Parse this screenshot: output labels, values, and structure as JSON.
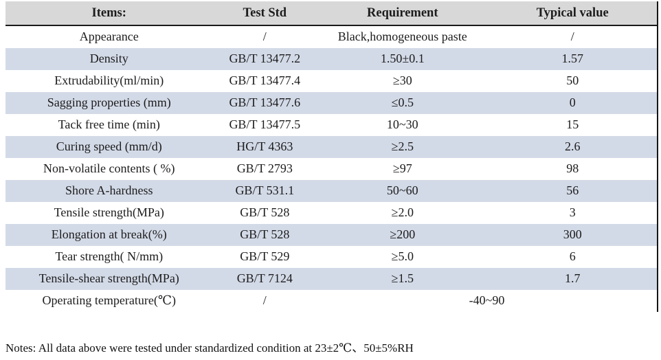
{
  "table": {
    "headers": [
      "Items:",
      "Test Std",
      "Requirement",
      "Typical value"
    ],
    "rows": [
      {
        "item": "Appearance",
        "std": "/",
        "req": "Black,homogeneous paste",
        "typ": "/"
      },
      {
        "item": "Density",
        "std": "GB/T 13477.2",
        "req": "1.50±0.1",
        "typ": "1.57"
      },
      {
        "item": "Extrudability(ml/min)",
        "std": "GB/T 13477.4",
        "req": "≥30",
        "typ": "50"
      },
      {
        "item": "Sagging properties (mm)",
        "std": "GB/T 13477.6",
        "req": "≤0.5",
        "typ": "0"
      },
      {
        "item": "Tack free time (min)",
        "std": "GB/T 13477.5",
        "req": "10~30",
        "typ": "15"
      },
      {
        "item": "Curing speed (mm/d)",
        "std": "HG/T 4363",
        "req": "≥2.5",
        "typ": "2.6"
      },
      {
        "item": "Non-volatile contents ( %)",
        "std": "GB/T 2793",
        "req": "≥97",
        "typ": "98"
      },
      {
        "item": "Shore A-hardness",
        "std": "GB/T 531.1",
        "req": "50~60",
        "typ": "56"
      },
      {
        "item": "Tensile strength(MPa)",
        "std": "GB/T 528",
        "req": "≥2.0",
        "typ": "3"
      },
      {
        "item": "Elongation at break(%)",
        "std": "GB/T 528",
        "req": "≥200",
        "typ": "300"
      },
      {
        "item": "Tear strength( N/mm)",
        "std": "GB/T 529",
        "req": "≥5.0",
        "typ": "6"
      },
      {
        "item": "Tensile-shear strength(MPa)",
        "std": "GB/T 7124",
        "req": "≥1.5",
        "typ": "1.7"
      }
    ],
    "footer_row": {
      "item": "Operating temperature(℃)",
      "std": "/",
      "merged_value": "-40~90"
    }
  },
  "notes": "Notes: All data above were tested under standardized condition at 23±2℃、50±5%RH",
  "colors": {
    "header_bg": "#d8d8d8",
    "shaded_row_bg": "#d3dae7",
    "border": "#141414"
  }
}
